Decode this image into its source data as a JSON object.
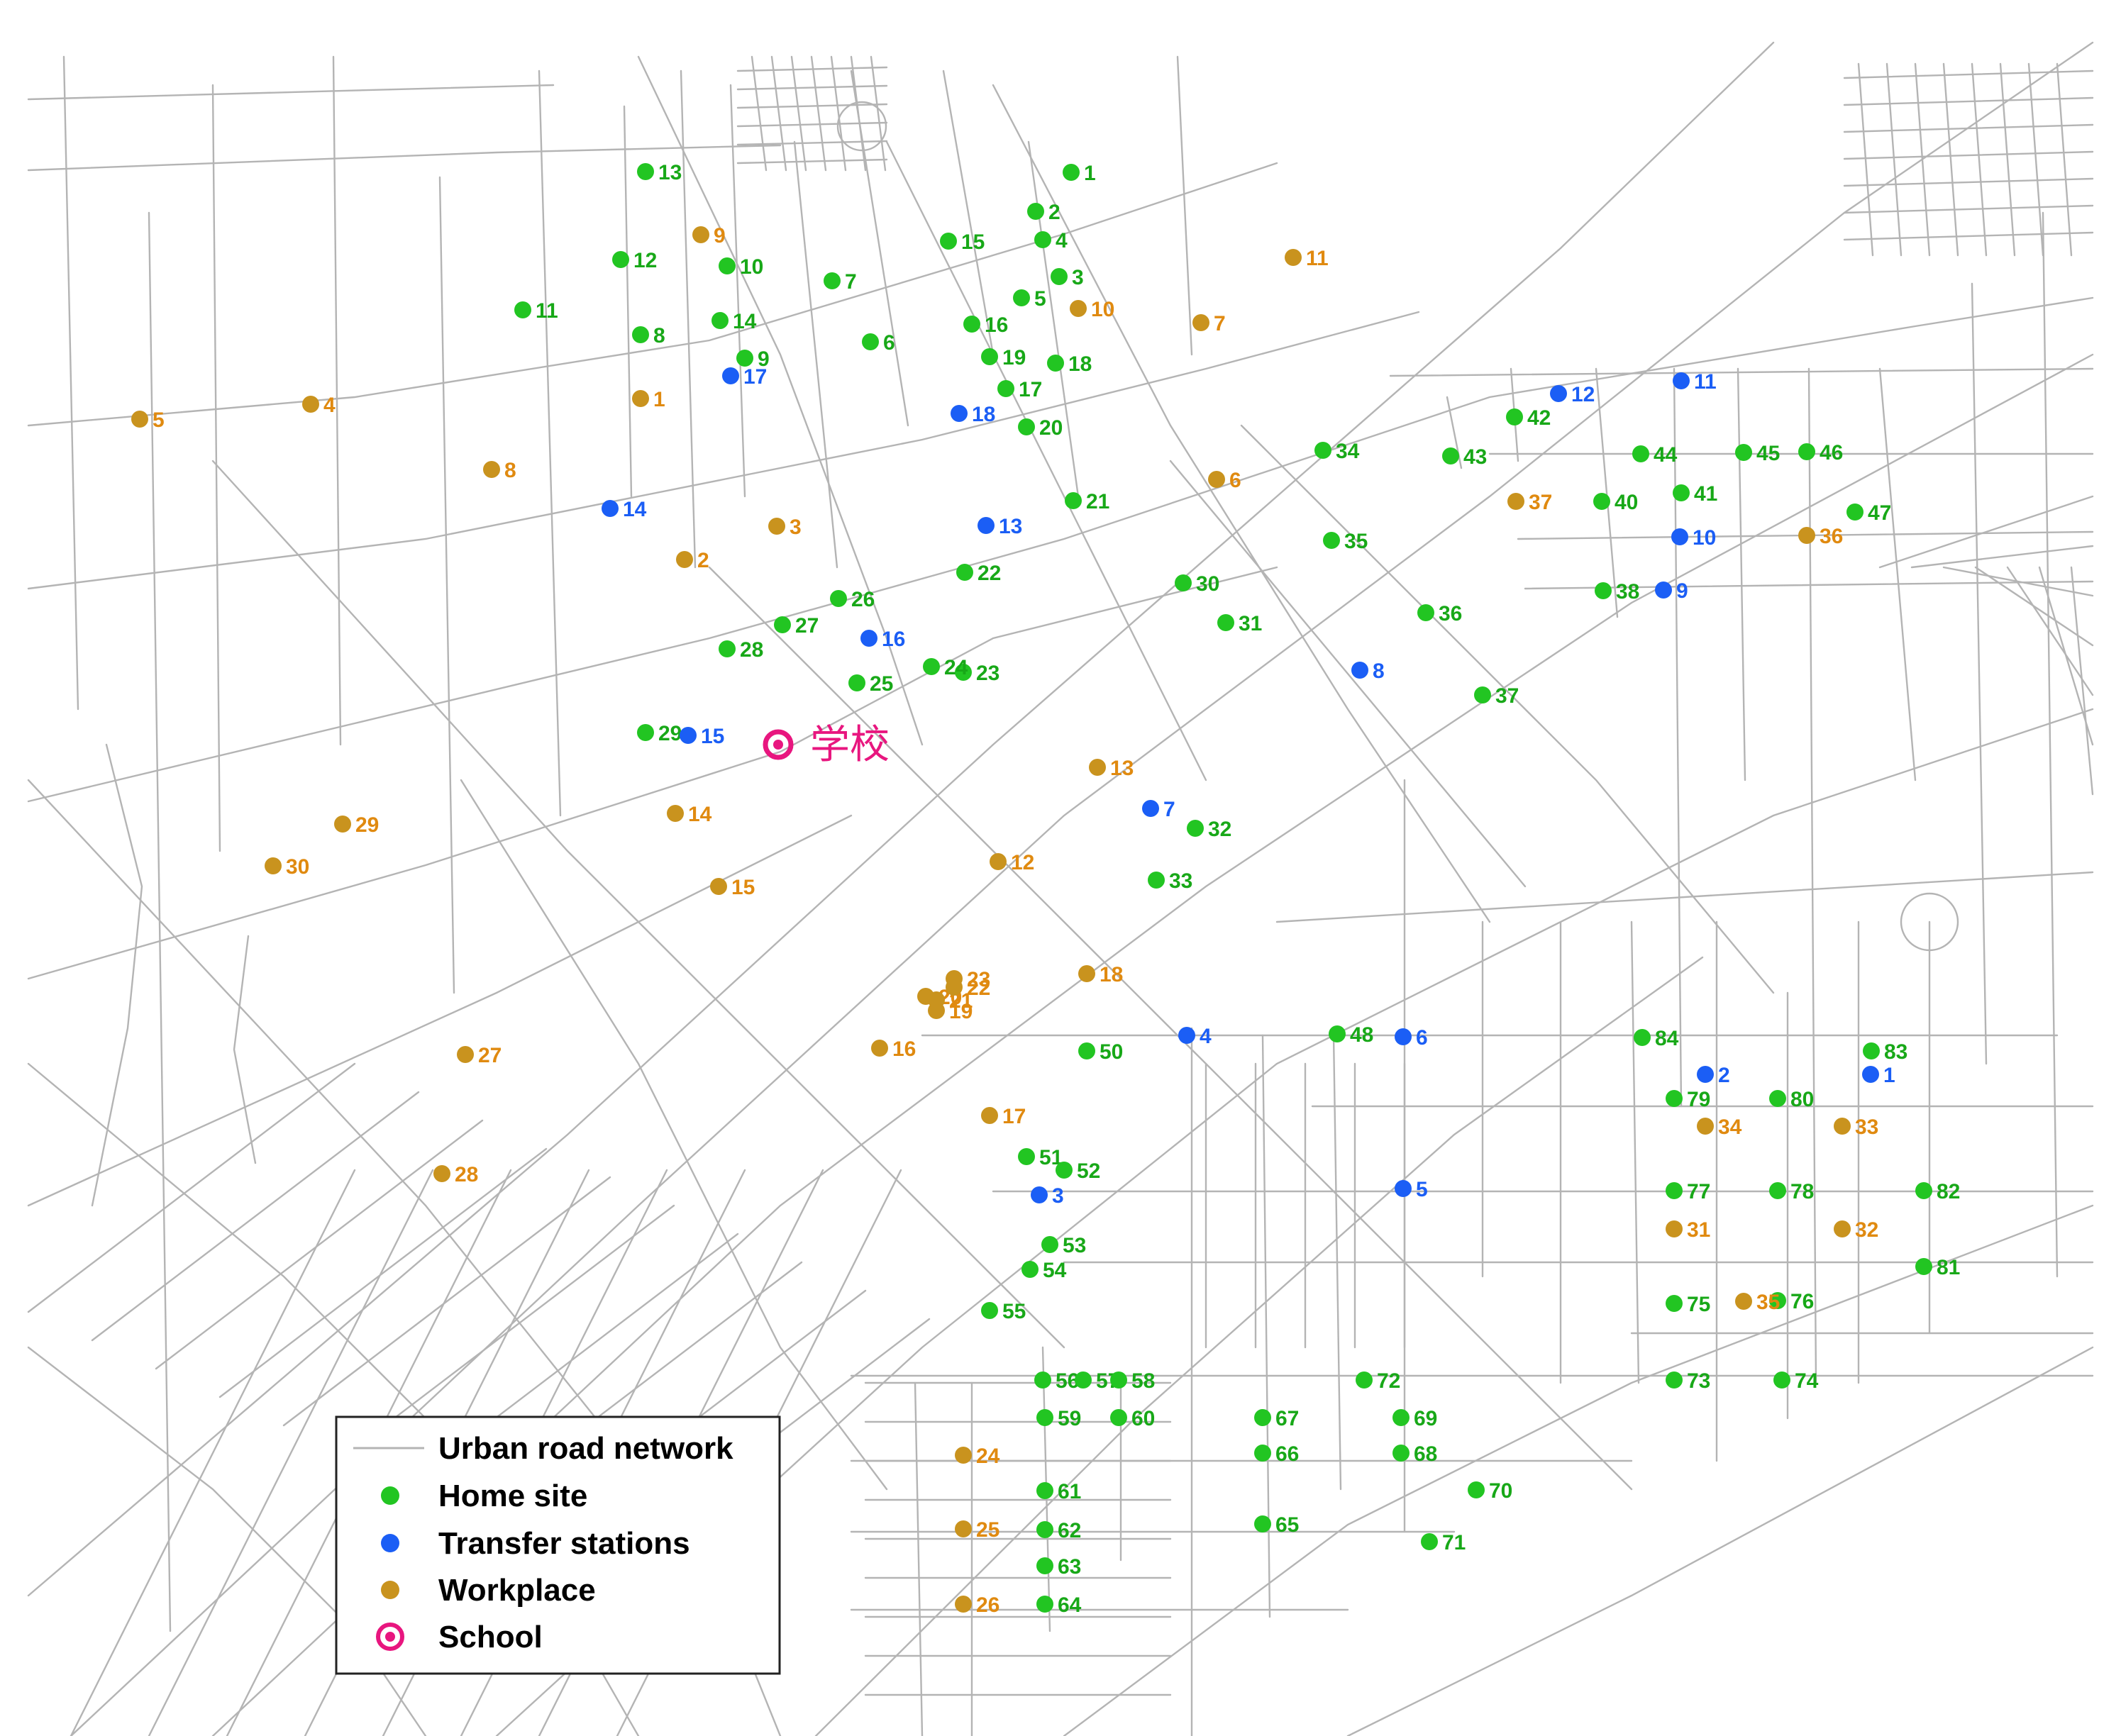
{
  "colors": {
    "road": "#b4b4b4",
    "home": "#22c522",
    "transfer": "#1b5ef5",
    "workplace": "#c9931e",
    "school": "#e8167f",
    "homeLabel": "#18a818",
    "transferLabel": "#1b5ef5",
    "workLabel": "#e08a10"
  },
  "legend": {
    "road": "Urban road network",
    "home": "Home site",
    "transfer": "Transfer stations",
    "workplace": "Workplace",
    "school": "School"
  },
  "school": {
    "label": "学校"
  },
  "home_sites": [
    "1",
    "2",
    "3",
    "4",
    "5",
    "6",
    "7",
    "8",
    "9",
    "10",
    "11",
    "12",
    "13",
    "14",
    "15",
    "16",
    "17",
    "18",
    "19",
    "20",
    "21",
    "22",
    "23",
    "24",
    "25",
    "26",
    "27",
    "28",
    "29",
    "30",
    "31",
    "32",
    "33",
    "34",
    "35",
    "36",
    "37",
    "38",
    "40",
    "41",
    "42",
    "43",
    "44",
    "45",
    "46",
    "47",
    "48",
    "50",
    "51",
    "52",
    "53",
    "54",
    "55",
    "56",
    "57",
    "58",
    "59",
    "60",
    "61",
    "62",
    "63",
    "64",
    "65",
    "66",
    "67",
    "68",
    "69",
    "70",
    "71",
    "72",
    "73",
    "74",
    "75",
    "76",
    "77",
    "78",
    "79",
    "80",
    "81",
    "82",
    "83",
    "84"
  ],
  "transfer_stations": [
    "1",
    "2",
    "3",
    "4",
    "5",
    "6",
    "7",
    "8",
    "9",
    "10",
    "11",
    "12",
    "13",
    "14",
    "15",
    "16",
    "17",
    "18"
  ],
  "workplaces": [
    "1",
    "2",
    "3",
    "4",
    "5",
    "6",
    "7",
    "8",
    "9",
    "10",
    "11",
    "12",
    "13",
    "14",
    "15",
    "16",
    "17",
    "18",
    "19",
    "20",
    "21",
    "22",
    "23",
    "24",
    "25",
    "26",
    "27",
    "28",
    "29",
    "30",
    "31",
    "32",
    "33",
    "34",
    "35",
    "36",
    "37"
  ]
}
